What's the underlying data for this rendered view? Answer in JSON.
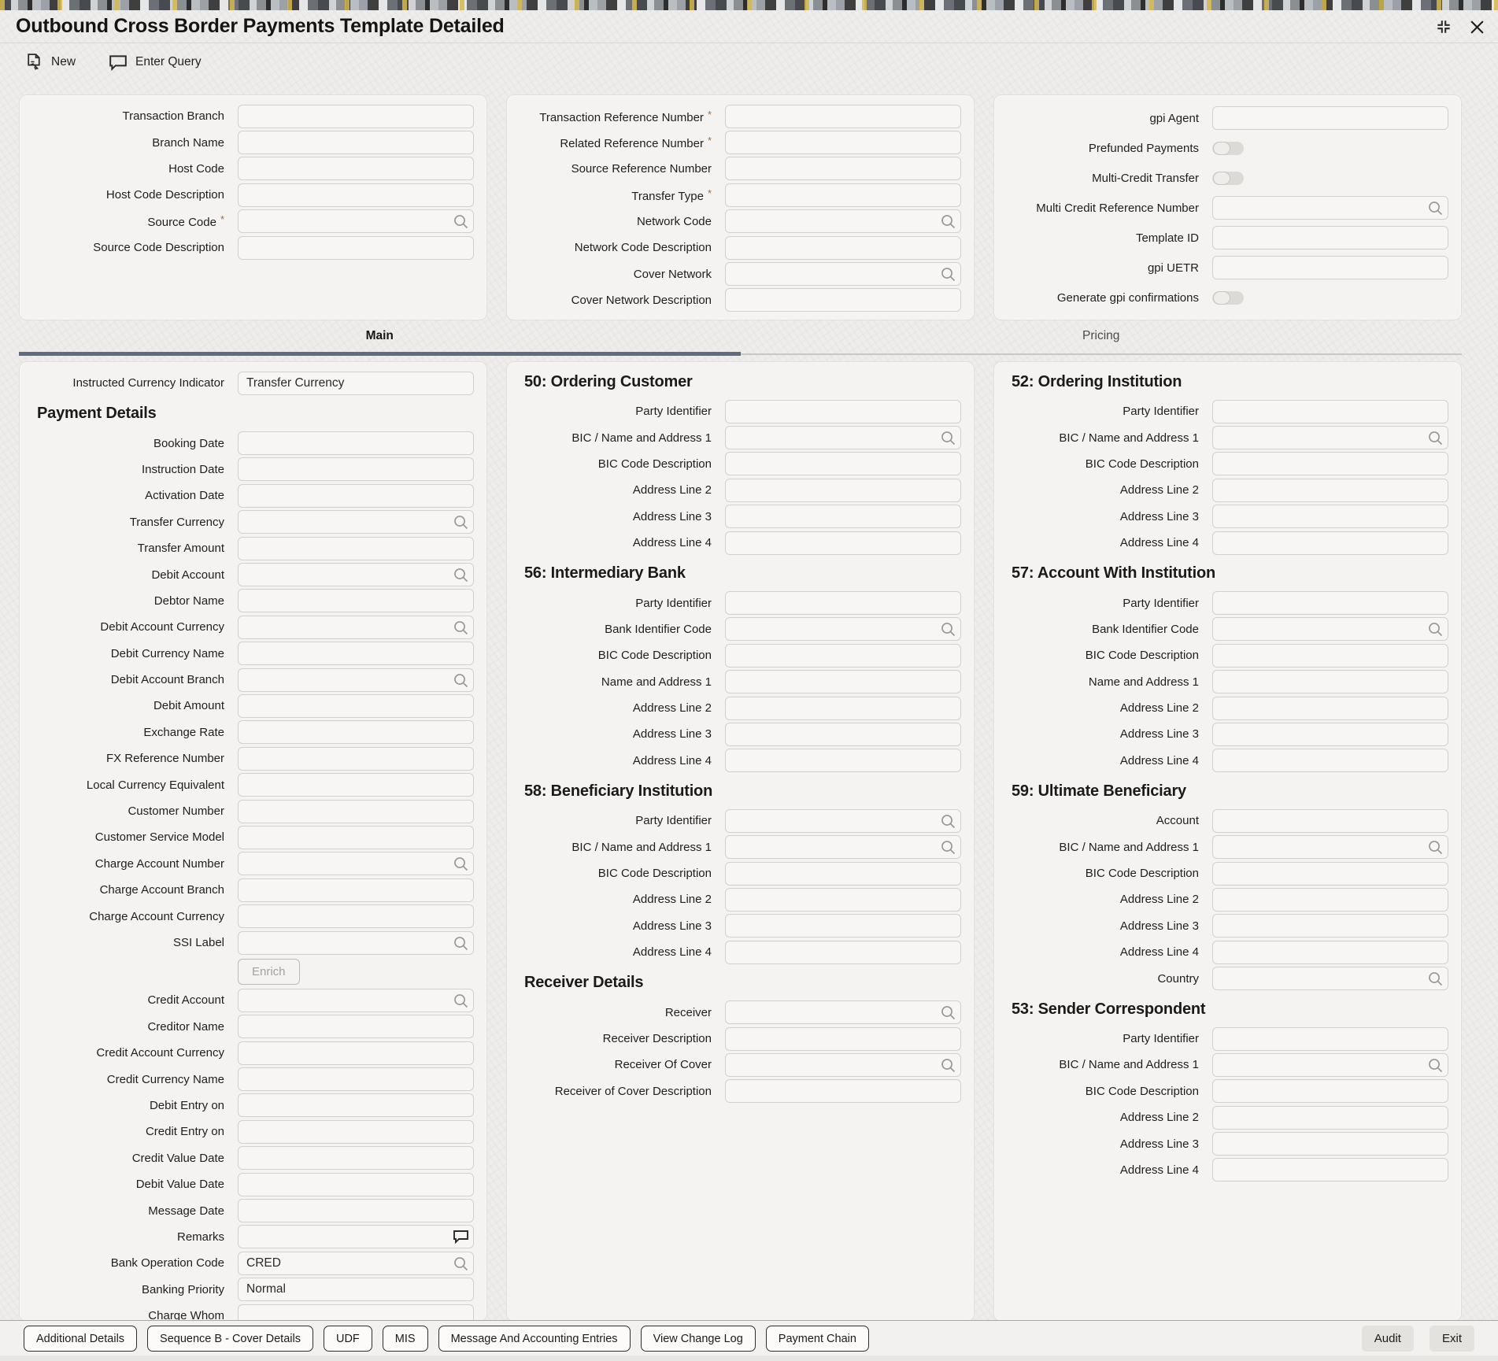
{
  "window": {
    "title": "Outbound Cross Border Payments Template Detailed",
    "controls": [
      {
        "name": "restore-icon"
      },
      {
        "name": "close-icon"
      }
    ]
  },
  "toolbar": {
    "new_label": "New",
    "enter_query_label": "Enter Query"
  },
  "header_panels": {
    "left": {
      "rows": [
        {
          "label": "Transaction Branch"
        },
        {
          "label": "Branch Name"
        },
        {
          "label": "Host Code"
        },
        {
          "label": "Host Code Description"
        },
        {
          "label": "Source Code",
          "required": true,
          "search": true
        },
        {
          "label": "Source Code Description"
        }
      ]
    },
    "middle": {
      "rows": [
        {
          "label": "Transaction Reference Number",
          "required": true
        },
        {
          "label": "Related Reference Number",
          "required": true
        },
        {
          "label": "Source Reference Number"
        },
        {
          "label": "Transfer Type",
          "required": true
        },
        {
          "label": "Network Code",
          "search": true
        },
        {
          "label": "Network Code Description"
        },
        {
          "label": "Cover Network",
          "search": true
        },
        {
          "label": "Cover Network Description"
        }
      ]
    },
    "right": {
      "rows": [
        {
          "label": "gpi Agent"
        },
        {
          "label": "Prefunded Payments",
          "toggle": true
        },
        {
          "label": "Multi-Credit Transfer",
          "toggle": true
        },
        {
          "label": "Multi Credit Reference Number",
          "search": true
        },
        {
          "label": "Template ID"
        },
        {
          "label": "gpi UETR"
        },
        {
          "label": "Generate gpi confirmations",
          "toggle": true
        }
      ]
    }
  },
  "tabs": [
    {
      "label": "Main",
      "active": true
    },
    {
      "label": "Pricing",
      "active": false
    }
  ],
  "main": {
    "left_column": {
      "intro_row": {
        "label": "Instructed Currency Indicator",
        "value": "Transfer Currency"
      },
      "section_title": "Payment Details",
      "rows": [
        {
          "label": "Booking Date"
        },
        {
          "label": "Instruction Date"
        },
        {
          "label": "Activation Date"
        },
        {
          "label": "Transfer Currency",
          "search": true
        },
        {
          "label": "Transfer Amount"
        },
        {
          "label": "Debit Account",
          "search": true
        },
        {
          "label": "Debtor Name"
        },
        {
          "label": "Debit Account Currency",
          "search": true
        },
        {
          "label": "Debit Currency Name"
        },
        {
          "label": "Debit Account Branch",
          "search": true
        },
        {
          "label": "Debit Amount"
        },
        {
          "label": "Exchange Rate"
        },
        {
          "label": "FX Reference Number"
        },
        {
          "label": "Local Currency Equivalent"
        },
        {
          "label": "Customer Number"
        },
        {
          "label": "Customer Service Model"
        },
        {
          "label": "Charge Account Number",
          "search": true
        },
        {
          "label": "Charge Account Branch"
        },
        {
          "label": "Charge Account Currency"
        },
        {
          "label": "SSI Label",
          "search": true
        },
        {
          "button": "Enrich"
        },
        {
          "label": "Credit Account",
          "search": true
        },
        {
          "label": "Creditor Name"
        },
        {
          "label": "Credit Account Currency"
        },
        {
          "label": "Credit Currency Name"
        },
        {
          "label": "Debit Entry on"
        },
        {
          "label": "Credit Entry on"
        },
        {
          "label": "Credit Value Date"
        },
        {
          "label": "Debit Value Date"
        },
        {
          "label": "Message Date"
        },
        {
          "label": "Remarks",
          "icon": "comment"
        },
        {
          "label": "Bank Operation Code",
          "value": "CRED",
          "search": true
        },
        {
          "label": "Banking Priority",
          "value": "Normal"
        },
        {
          "label": "Charge Whom"
        }
      ]
    },
    "middle_column": {
      "sections": [
        {
          "title": "50: Ordering Customer",
          "rows": [
            {
              "label": "Party Identifier"
            },
            {
              "label": "BIC / Name and Address 1",
              "search": true
            },
            {
              "label": "BIC Code Description"
            },
            {
              "label": "Address Line 2"
            },
            {
              "label": "Address Line 3"
            },
            {
              "label": "Address Line 4"
            }
          ]
        },
        {
          "title": "56: Intermediary Bank",
          "rows": [
            {
              "label": "Party Identifier"
            },
            {
              "label": "Bank Identifier Code",
              "search": true
            },
            {
              "label": "BIC Code Description"
            },
            {
              "label": "Name and Address 1"
            },
            {
              "label": "Address Line 2"
            },
            {
              "label": "Address Line 3"
            },
            {
              "label": "Address Line 4"
            }
          ]
        },
        {
          "title": "58: Beneficiary Institution",
          "rows": [
            {
              "label": "Party Identifier",
              "search": true
            },
            {
              "label": "BIC / Name and Address 1",
              "search": true
            },
            {
              "label": "BIC Code Description"
            },
            {
              "label": "Address Line 2"
            },
            {
              "label": "Address Line 3"
            },
            {
              "label": "Address Line 4"
            }
          ]
        },
        {
          "title": "Receiver Details",
          "rows": [
            {
              "label": "Receiver",
              "search": true
            },
            {
              "label": "Receiver Description"
            },
            {
              "label": "Receiver Of Cover",
              "search": true
            },
            {
              "label": "Receiver of Cover Description"
            }
          ]
        }
      ]
    },
    "right_column": {
      "sections": [
        {
          "title": "52: Ordering Institution",
          "rows": [
            {
              "label": "Party Identifier"
            },
            {
              "label": "BIC / Name and Address 1",
              "search": true
            },
            {
              "label": "BIC Code Description"
            },
            {
              "label": "Address Line 2"
            },
            {
              "label": "Address Line 3"
            },
            {
              "label": "Address Line 4"
            }
          ]
        },
        {
          "title": "57: Account With Institution",
          "rows": [
            {
              "label": "Party Identifier"
            },
            {
              "label": "Bank Identifier Code",
              "search": true
            },
            {
              "label": "BIC Code Description"
            },
            {
              "label": "Name and Address 1"
            },
            {
              "label": "Address Line 2"
            },
            {
              "label": "Address Line 3"
            },
            {
              "label": "Address Line 4"
            }
          ]
        },
        {
          "title": "59: Ultimate Beneficiary",
          "rows": [
            {
              "label": "Account"
            },
            {
              "label": "BIC / Name and Address 1",
              "search": true
            },
            {
              "label": "BIC Code Description"
            },
            {
              "label": "Address Line 2"
            },
            {
              "label": "Address Line 3"
            },
            {
              "label": "Address Line 4"
            },
            {
              "label": "Country",
              "search": true
            }
          ]
        },
        {
          "title": "53: Sender Correspondent",
          "rows": [
            {
              "label": "Party Identifier"
            },
            {
              "label": "BIC / Name and Address 1",
              "search": true
            },
            {
              "label": "BIC Code Description"
            },
            {
              "label": "Address Line 2"
            },
            {
              "label": "Address Line 3"
            },
            {
              "label": "Address Line 4"
            }
          ]
        }
      ]
    }
  },
  "footer": {
    "left_buttons": [
      "Additional Details",
      "Sequence B - Cover Details",
      "UDF",
      "MIS",
      "Message And Accounting Entries",
      "View Change Log",
      "Payment Chain"
    ],
    "right_buttons": [
      "Audit",
      "Exit"
    ]
  },
  "colors": {
    "active_tab_underline": "#5f6b80",
    "required_asterisk": "#9c6f42",
    "panel_background": "#f5f3f1",
    "field_border": "#d2d0cd"
  }
}
